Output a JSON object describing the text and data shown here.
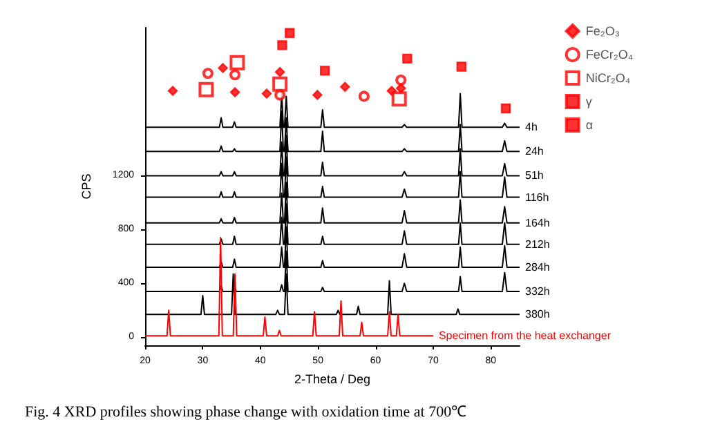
{
  "chart_data": {
    "type": "line",
    "xlabel": "2-Theta / Deg",
    "ylabel": "CPS",
    "xlim": [
      20,
      85
    ],
    "xticks": [
      20,
      30,
      40,
      50,
      60,
      70,
      80
    ],
    "ylim": [
      -60,
      2300
    ],
    "yticks": [
      0,
      400,
      800,
      {
        "value": 1200,
        "label": "1200"
      }
    ],
    "grid": false,
    "legend": "top right",
    "line_style": "solid",
    "x": [
      20,
      32.9,
      33.2,
      33.5,
      35.2,
      35.5,
      35.8,
      43.4,
      43.7,
      44.0,
      44.2,
      44.5,
      44.8,
      50.5,
      50.8,
      51.1,
      64.6,
      65,
      65.4,
      74.4,
      74.7,
      75,
      82,
      82.4,
      82.8,
      85
    ],
    "series": [
      {
        "name": "4h",
        "color": "#000000",
        "values": [
          1560,
          1560,
          1630,
          1560,
          1560,
          1600,
          1560,
          1560,
          1810,
          1560,
          1560,
          1790,
          1560,
          1560,
          1690,
          1560,
          1560,
          1580,
          1560,
          1560,
          1810,
          1560,
          1560,
          1590,
          1560,
          1560
        ]
      },
      {
        "name": "24h",
        "color": "#000000",
        "values": [
          1380,
          1380,
          1420,
          1380,
          1380,
          1400,
          1380,
          1380,
          1680,
          1380,
          1380,
          1630,
          1380,
          1380,
          1530,
          1380,
          1380,
          1400,
          1380,
          1380,
          1580,
          1380,
          1380,
          1460,
          1380,
          1380
        ]
      },
      {
        "name": "51h",
        "color": "#000000",
        "values": [
          1200,
          1200,
          1230,
          1200,
          1200,
          1230,
          1200,
          1200,
          1450,
          1200,
          1200,
          1500,
          1200,
          1200,
          1300,
          1200,
          1200,
          1230,
          1200,
          1200,
          1400,
          1200,
          1200,
          1290,
          1200,
          1200
        ]
      },
      {
        "name": "116h",
        "color": "#000000",
        "values": [
          1040,
          1040,
          1080,
          1040,
          1040,
          1080,
          1040,
          1040,
          1290,
          1040,
          1040,
          1340,
          1040,
          1040,
          1120,
          1040,
          1040,
          1100,
          1040,
          1040,
          1230,
          1040,
          1040,
          1190,
          1040,
          1040
        ]
      },
      {
        "name": "164h",
        "color": "#000000",
        "values": [
          850,
          850,
          880,
          850,
          850,
          890,
          850,
          850,
          1070,
          850,
          850,
          1150,
          850,
          850,
          960,
          850,
          850,
          940,
          850,
          850,
          1020,
          850,
          850,
          970,
          850,
          850
        ]
      },
      {
        "name": "212h",
        "color": "#000000",
        "values": [
          690,
          690,
          730,
          690,
          690,
          750,
          690,
          690,
          890,
          690,
          690,
          990,
          690,
          690,
          750,
          690,
          690,
          790,
          690,
          690,
          850,
          690,
          690,
          850,
          690,
          690
        ]
      },
      {
        "name": "284h",
        "color": "#000000",
        "values": [
          520,
          520,
          560,
          520,
          520,
          580,
          520,
          520,
          670,
          520,
          520,
          820,
          520,
          520,
          570,
          520,
          520,
          620,
          520,
          520,
          670,
          520,
          520,
          680,
          520,
          520
        ]
      },
      {
        "name": "332h",
        "color": "#000000",
        "values": [
          340,
          340,
          380,
          340,
          340,
          380,
          340,
          340,
          390,
          340,
          340,
          640,
          340,
          340,
          370,
          340,
          340,
          400,
          340,
          340,
          450,
          340,
          340,
          480,
          340,
          340
        ]
      },
      {
        "name": "380h",
        "color": "#000000",
        "x": [
          20,
          29.7,
          30,
          30.3,
          35,
          35.3,
          35.6,
          42.7,
          43,
          43.3,
          44.2,
          44.5,
          44.8,
          53.2,
          53.5,
          53.8,
          56.7,
          57,
          57.3,
          62.1,
          62.4,
          62.7,
          74,
          74.3,
          74.6,
          85
        ],
        "values": [
          170,
          170,
          310,
          170,
          170,
          470,
          170,
          170,
          200,
          170,
          170,
          470,
          170,
          170,
          200,
          170,
          170,
          230,
          170,
          170,
          420,
          170,
          170,
          210,
          170,
          170
        ]
      },
      {
        "name": "Specimen from the heat exchanger",
        "color": "#ff0000",
        "x": [
          20,
          23.8,
          24.1,
          24.4,
          32.8,
          33.1,
          33.4,
          35.3,
          35.6,
          35.9,
          40.5,
          40.8,
          41.1,
          43,
          43.3,
          43.6,
          49.1,
          49.4,
          49.7,
          53.7,
          54,
          54.3,
          57.3,
          57.6,
          57.9,
          62.1,
          62.4,
          62.7,
          63.6,
          63.9,
          64.2,
          70
        ],
        "values": [
          10,
          10,
          200,
          10,
          10,
          740,
          10,
          10,
          470,
          10,
          10,
          150,
          10,
          10,
          50,
          10,
          10,
          190,
          10,
          10,
          270,
          10,
          10,
          110,
          10,
          10,
          190,
          10,
          10,
          170,
          10,
          10
        ]
      },
      {
        "name": "Fe₂O₃",
        "type": "scatter",
        "marker": "diamond",
        "color": "#ff0000",
        "x": [
          24.8,
          33.5,
          35.6,
          41.1,
          43.4,
          49.9,
          54.7,
          62.8,
          64.4
        ],
        "values": [
          1830,
          2000,
          1820,
          1810,
          1970,
          1800,
          1860,
          1830,
          1850
        ]
      },
      {
        "name": "FeCr₂O₄",
        "type": "scatter",
        "marker": "circle",
        "color": "#ff0000",
        "x": [
          30.9,
          35.6,
          43.4,
          58.0,
          64.4
        ],
        "values": [
          1960,
          1950,
          1800,
          1790,
          1910
        ]
      },
      {
        "name": "NiCr₂O₄",
        "type": "scatter",
        "marker": "square",
        "color": "#ff0000",
        "x": [
          30.6,
          36.0,
          43.4,
          64.1
        ],
        "values": [
          1840,
          2040,
          1880,
          1770
        ]
      },
      {
        "name": "γ",
        "type": "scatter",
        "color": "#ff0000",
        "x": [
          43.8,
          51.2,
          74.9
        ],
        "values": [
          2170,
          1980,
          2010
        ]
      },
      {
        "name": "α",
        "type": "scatter",
        "color": "#ff0000",
        "x": [
          45.1,
          65.5,
          82.6
        ],
        "values": [
          2260,
          2070,
          1700
        ]
      }
    ],
    "annotations": [
      "Fig. 4 XRD profiles showing phase change with oxidation time at 700℃"
    ]
  }
}
